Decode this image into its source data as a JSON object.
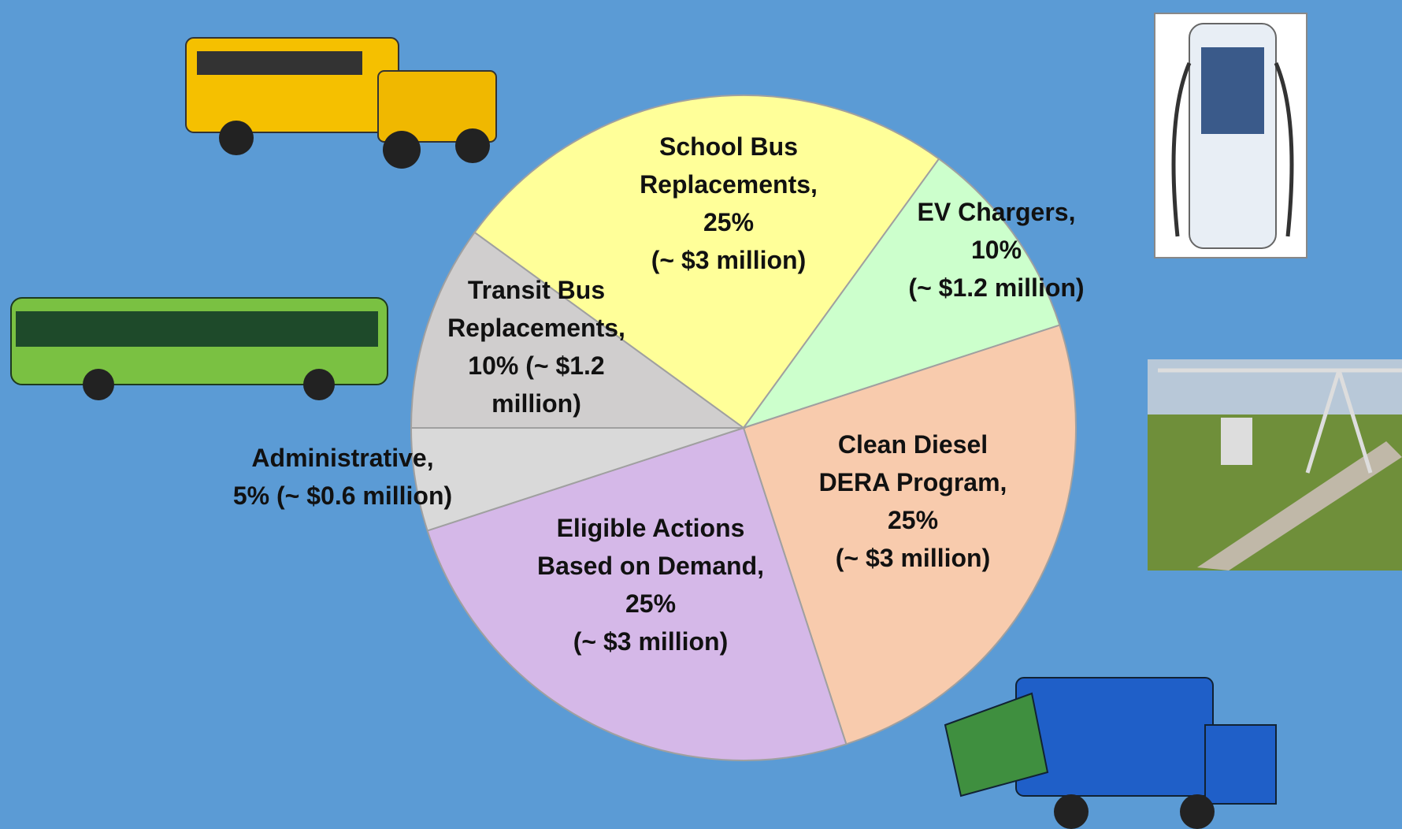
{
  "chart_data": {
    "type": "pie",
    "labels": [
      [
        "School Bus",
        "Replacements,",
        "25%",
        "(~ $3 million)"
      ],
      [
        "EV Chargers,",
        "10%",
        "(~ $1.2 million)"
      ],
      [
        "Clean Diesel",
        "DERA Program,",
        "25%",
        "(~ $3 million)"
      ],
      [
        "Eligible Actions",
        "Based on Demand,",
        "25%",
        "(~ $3 million)"
      ],
      [
        "Administrative,",
        "5% (~ $0.6 million)"
      ],
      [
        "Transit Bus",
        "Replacements,",
        "10% (~ $1.2",
        "million)"
      ]
    ],
    "values": [
      25,
      10,
      25,
      25,
      5,
      10
    ],
    "colors": [
      "#ffff99",
      "#ccffcc",
      "#f8cbad",
      "#d5b8e8",
      "#d9d9d9",
      "#d0cece"
    ]
  }
}
